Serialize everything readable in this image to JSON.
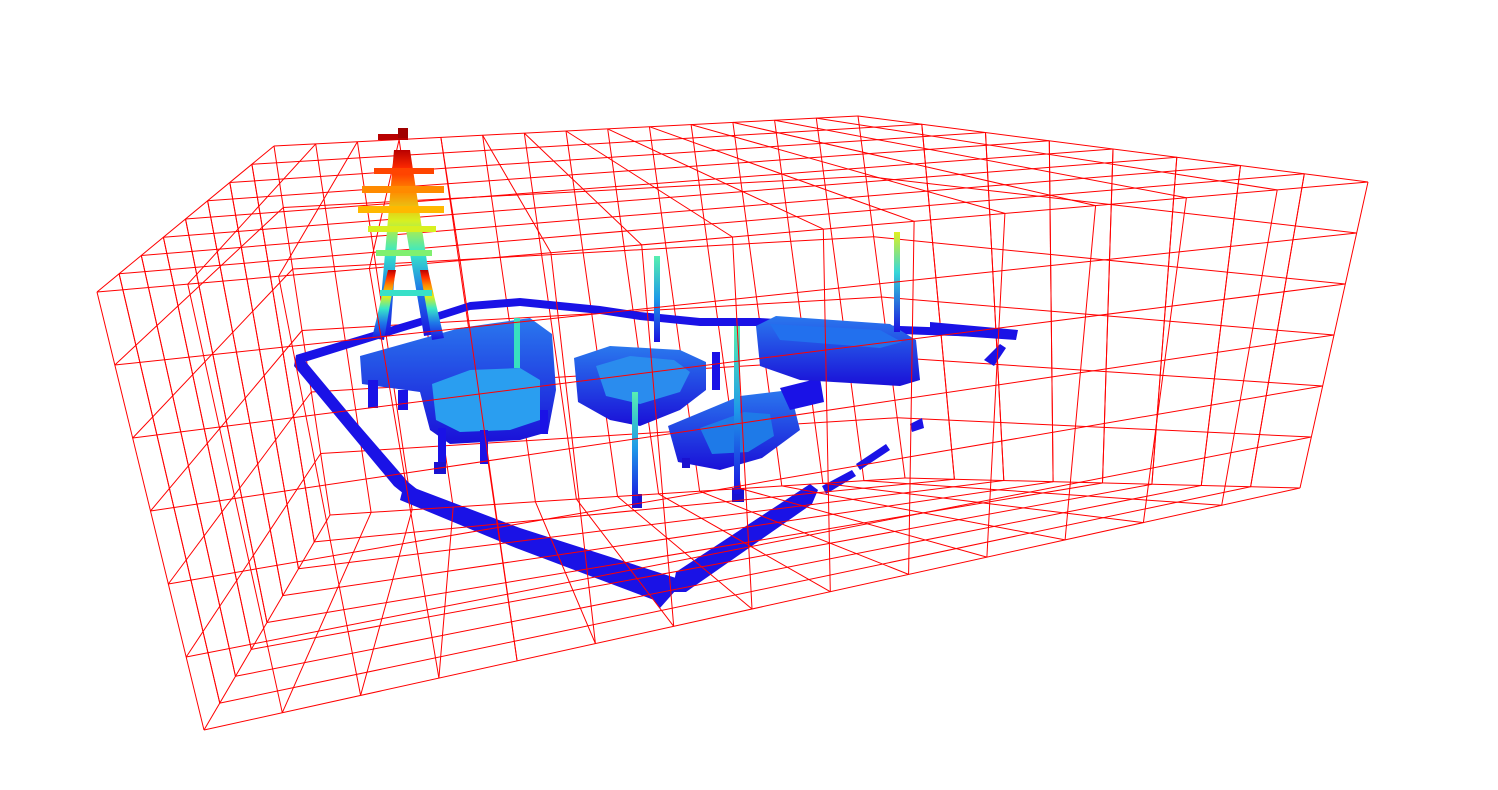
{
  "scene": {
    "type": "voxel-octree-visualization",
    "colors": {
      "background": "#ffffff",
      "grid": "#ff0000",
      "voxel_low": "#1a10e0",
      "voxel_mid_low": "#1e7ae8",
      "voxel_mid": "#38e8c8",
      "voxel_mid_high": "#d8f020",
      "voxel_high": "#ff8a00",
      "voxel_top": "#b80000"
    },
    "colormap": "jet",
    "grid_visible": true
  }
}
